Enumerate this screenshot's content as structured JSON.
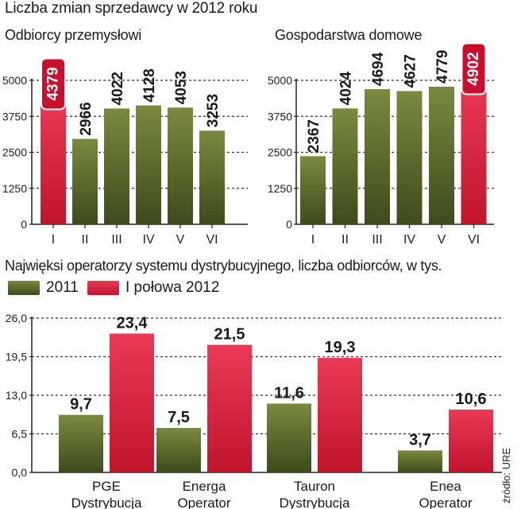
{
  "title": "Liczba zmian sprzedawcy w 2012 roku",
  "section_title": "Najwięksi operatorzy systemu dystrybucyjnego, liczba odbiorców, w tys.",
  "source": "źródło: URE",
  "colors": {
    "green_top": "#7a8a3e",
    "green_bottom": "#3d4a1c",
    "red_top": "#ea3a55",
    "red_bottom": "#c0142c",
    "grid": "#333333"
  },
  "chart_data": [
    {
      "type": "bar",
      "title": "Odbiorcy przemysłowi",
      "categories": [
        "I",
        "II",
        "III",
        "IV",
        "V",
        "VI"
      ],
      "values": [
        4379,
        2966,
        4022,
        4128,
        4053,
        3253
      ],
      "value_labels": [
        "4379",
        "2966",
        "4022",
        "4128",
        "4053",
        "3253"
      ],
      "highlight_index": 0,
      "ylim": [
        0,
        5000
      ],
      "yticks": [
        0,
        1250,
        2500,
        3750,
        5000
      ],
      "ytick_labels": [
        "0",
        "1250",
        "2500",
        "3750",
        "5000"
      ],
      "xlabel": "",
      "ylabel": ""
    },
    {
      "type": "bar",
      "title": "Gospodarstwa domowe",
      "categories": [
        "I",
        "II",
        "III",
        "IV",
        "V",
        "VI"
      ],
      "values": [
        2367,
        4024,
        4694,
        4627,
        4779,
        4902
      ],
      "value_labels": [
        "2367",
        "4024",
        "4694",
        "4627",
        "4779",
        "4902"
      ],
      "highlight_index": 5,
      "ylim": [
        0,
        5000
      ],
      "yticks": [
        0,
        1250,
        2500,
        3750,
        5000
      ],
      "ytick_labels": [
        "0",
        "1250",
        "2500",
        "3750",
        "5000"
      ],
      "xlabel": "",
      "ylabel": ""
    },
    {
      "type": "bar",
      "title": "Najwięksi operatorzy systemu dystrybucyjnego, liczba odbiorców, w tys.",
      "categories": [
        [
          "PGE",
          "Dystrybucja"
        ],
        [
          "Energa",
          "Operator"
        ],
        [
          "Tauron",
          "Dystrybucja"
        ],
        [
          "Enea",
          "Operator"
        ]
      ],
      "series": [
        {
          "name": "2011",
          "values": [
            9.7,
            7.5,
            11.6,
            3.7
          ],
          "labels": [
            "9,7",
            "7,5",
            "11,6",
            "3,7"
          ]
        },
        {
          "name": "I połowa 2012",
          "values": [
            23.4,
            21.5,
            19.3,
            10.6
          ],
          "labels": [
            "23,4",
            "21,5",
            "19,3",
            "10,6"
          ]
        }
      ],
      "ylim": [
        0,
        26
      ],
      "yticks": [
        0,
        6.5,
        13,
        19.5,
        26
      ],
      "ytick_labels": [
        "0,0",
        "6,5",
        "13,0",
        "19,5",
        "26,0"
      ],
      "legend": "top-left",
      "xlabel": "",
      "ylabel": ""
    }
  ]
}
